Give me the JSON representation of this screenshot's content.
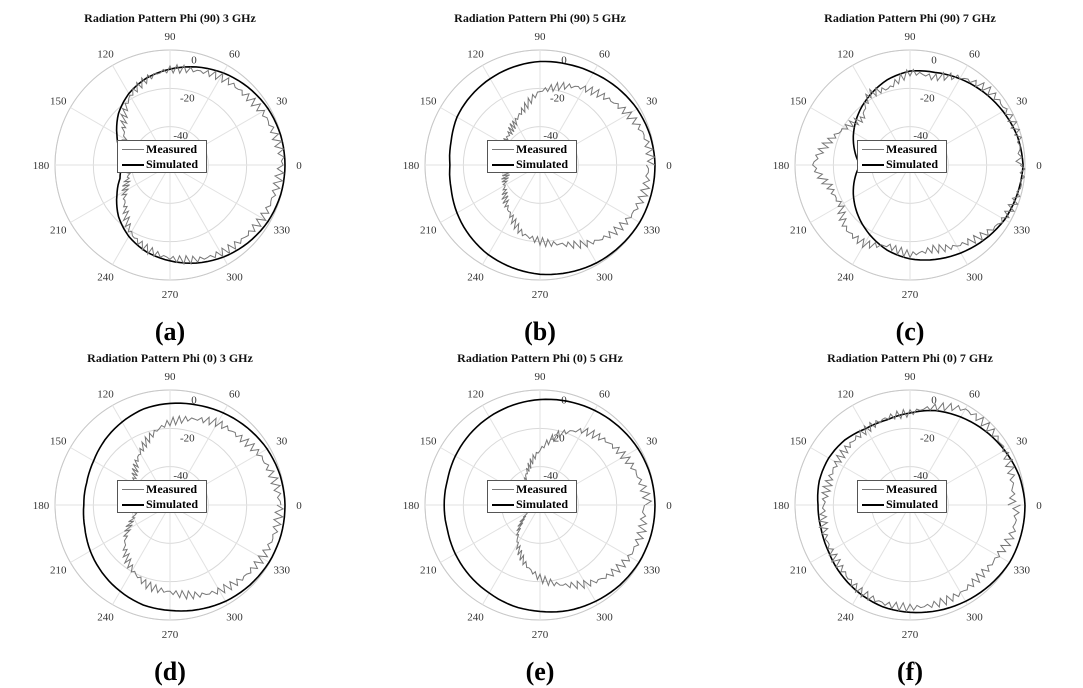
{
  "figure": {
    "panel_labels": [
      "(a)",
      "(b)",
      "(c)",
      "(d)",
      "(e)",
      "(f)"
    ]
  },
  "chart_data": [
    {
      "type": "polar-line",
      "title": "Radiation Pattern Phi (90) 3 GHz",
      "angle_ticks": [
        "0",
        "30",
        "60",
        "90",
        "120",
        "150",
        "180",
        "210",
        "240",
        "270",
        "300",
        "330"
      ],
      "radial_ticks": [
        "0",
        "-20",
        "-40"
      ],
      "rlim": [
        -60,
        0
      ],
      "legend": {
        "position": "center",
        "entries": [
          "Measured",
          "Simulated"
        ]
      },
      "series": [
        {
          "name": "Simulated",
          "color": "#000000",
          "theta": [
            0,
            15,
            30,
            45,
            60,
            75,
            90,
            105,
            120,
            135,
            150,
            165,
            180,
            195,
            210,
            225,
            240,
            255,
            270,
            285,
            300,
            315,
            330,
            345
          ],
          "r": [
            0,
            -0.2,
            -1,
            -2.5,
            -4.5,
            -7,
            -10,
            -13,
            -17,
            -22,
            -28,
            -33,
            -35,
            -33,
            -28,
            -22,
            -17,
            -13,
            -10,
            -7,
            -4.5,
            -2.5,
            -1,
            -0.2
          ]
        },
        {
          "name": "Measured",
          "color": "#777777",
          "theta": [
            0,
            15,
            30,
            45,
            60,
            75,
            90,
            105,
            120,
            135,
            150,
            165,
            180,
            195,
            210,
            225,
            240,
            255,
            270,
            285,
            300,
            315,
            330,
            345
          ],
          "r": [
            -1,
            -2,
            -3,
            -5,
            -6,
            -9,
            -11,
            -15,
            -20,
            -27,
            -33,
            -37,
            -38,
            -36,
            -32,
            -27,
            -20,
            -16,
            -13,
            -10,
            -7,
            -5,
            -3,
            -2
          ]
        }
      ]
    },
    {
      "type": "polar-line",
      "title": "Radiation Pattern Phi (90) 5 GHz",
      "angle_ticks": [
        "0",
        "30",
        "60",
        "90",
        "120",
        "150",
        "180",
        "210",
        "240",
        "270",
        "300",
        "330"
      ],
      "radial_ticks": [
        "0",
        "-20",
        "-40"
      ],
      "rlim": [
        -60,
        0
      ],
      "legend": {
        "position": "center",
        "entries": [
          "Measured",
          "Simulated"
        ]
      },
      "series": [
        {
          "name": "Simulated",
          "color": "#000000",
          "theta": [
            0,
            15,
            30,
            45,
            60,
            75,
            90,
            105,
            120,
            135,
            150,
            165,
            180,
            195,
            210,
            225,
            240,
            255,
            270,
            285,
            300,
            315,
            330,
            345
          ],
          "r": [
            0,
            -0.5,
            -1.5,
            -3,
            -4.5,
            -5.5,
            -6,
            -7,
            -8,
            -9,
            -10,
            -12,
            -13,
            -12,
            -10,
            -8,
            -6,
            -4.5,
            -3,
            -2,
            -1,
            -0.5,
            0,
            0
          ]
        },
        {
          "name": "Measured",
          "color": "#777777",
          "theta": [
            0,
            15,
            30,
            45,
            60,
            75,
            90,
            105,
            120,
            135,
            150,
            165,
            180,
            195,
            210,
            225,
            240,
            255,
            270,
            285,
            300,
            315,
            330,
            345
          ],
          "r": [
            -3,
            -5,
            -8,
            -11,
            -13,
            -16,
            -20,
            -28,
            -34,
            -38,
            -40,
            -42,
            -44,
            -42,
            -38,
            -33,
            -28,
            -22,
            -20,
            -18,
            -14,
            -10,
            -7,
            -4
          ]
        }
      ]
    },
    {
      "type": "polar-line",
      "title": "Radiation Pattern Phi (90) 7 GHz",
      "angle_ticks": [
        "0",
        "30",
        "60",
        "90",
        "120",
        "150",
        "180",
        "210",
        "240",
        "270",
        "300",
        "330"
      ],
      "radial_ticks": [
        "0",
        "-20",
        "-40"
      ],
      "rlim": [
        -60,
        0
      ],
      "legend": {
        "position": "center",
        "entries": [
          "Measured",
          "Simulated"
        ]
      },
      "series": [
        {
          "name": "Simulated",
          "color": "#000000",
          "theta": [
            0,
            15,
            30,
            45,
            60,
            75,
            90,
            105,
            120,
            135,
            150,
            165,
            180,
            195,
            210,
            225,
            240,
            255,
            270,
            285,
            300,
            315,
            330,
            345
          ],
          "r": [
            -1,
            -2,
            -4,
            -6,
            -8,
            -10,
            -11,
            -14,
            -18,
            -22,
            -26,
            -30,
            -34,
            -30,
            -26,
            -22,
            -18,
            -14,
            -11,
            -9,
            -7,
            -5,
            -3,
            -2
          ]
        },
        {
          "name": "Measured",
          "color": "#777777",
          "theta": [
            0,
            15,
            30,
            45,
            60,
            75,
            90,
            105,
            120,
            135,
            150,
            165,
            180,
            195,
            210,
            225,
            240,
            255,
            270,
            285,
            300,
            315,
            330,
            345
          ],
          "r": [
            -2,
            -1,
            -3,
            -5,
            -9,
            -14,
            -12,
            -18,
            -16,
            -24,
            -20,
            -15,
            -10,
            -18,
            -20,
            -14,
            -13,
            -16,
            -12,
            -13,
            -10,
            -7,
            -4,
            -3
          ]
        }
      ]
    },
    {
      "type": "polar-line",
      "title": "Radiation Pattern Phi (0) 3 GHz",
      "angle_ticks": [
        "0",
        "30",
        "60",
        "90",
        "120",
        "150",
        "180",
        "210",
        "240",
        "270",
        "300",
        "330"
      ],
      "radial_ticks": [
        "0",
        "-20",
        "-40"
      ],
      "rlim": [
        -60,
        0
      ],
      "legend": {
        "position": "center",
        "entries": [
          "Measured",
          "Simulated"
        ]
      },
      "series": [
        {
          "name": "Simulated",
          "color": "#000000",
          "theta": [
            0,
            15,
            30,
            45,
            60,
            75,
            90,
            105,
            120,
            135,
            150,
            165,
            180,
            195,
            210,
            225,
            240,
            255,
            270,
            285,
            300,
            315,
            330,
            345
          ],
          "r": [
            0,
            -0.5,
            -1.5,
            -3,
            -4.5,
            -6,
            -7,
            -8,
            -10,
            -12,
            -14,
            -15,
            -15,
            -14,
            -12,
            -10,
            -8,
            -6,
            -5,
            -3.5,
            -2,
            -1,
            -0.3,
            0
          ]
        },
        {
          "name": "Measured",
          "color": "#777777",
          "theta": [
            0,
            15,
            30,
            45,
            60,
            75,
            90,
            105,
            120,
            135,
            150,
            165,
            180,
            195,
            210,
            225,
            240,
            255,
            270,
            285,
            300,
            315,
            330,
            345
          ],
          "r": [
            -2,
            -3,
            -5,
            -8,
            -10,
            -14,
            -18,
            -24,
            -30,
            -35,
            -38,
            -40,
            -42,
            -40,
            -34,
            -27,
            -22,
            -18,
            -16,
            -12,
            -8,
            -5,
            -3,
            -2
          ]
        }
      ]
    },
    {
      "type": "polar-line",
      "title": "Radiation Pattern Phi (0) 5 GHz",
      "angle_ticks": [
        "0",
        "30",
        "60",
        "90",
        "120",
        "150",
        "180",
        "210",
        "240",
        "270",
        "300",
        "330"
      ],
      "radial_ticks": [
        "0",
        "-20",
        "-40"
      ],
      "rlim": [
        -60,
        0
      ],
      "legend": {
        "position": "center",
        "entries": [
          "Measured",
          "Simulated"
        ]
      },
      "series": [
        {
          "name": "Simulated",
          "color": "#000000",
          "theta": [
            0,
            15,
            30,
            45,
            60,
            75,
            90,
            105,
            120,
            135,
            150,
            165,
            180,
            195,
            210,
            225,
            240,
            255,
            270,
            285,
            300,
            315,
            330,
            345
          ],
          "r": [
            0,
            -0.3,
            -1,
            -2,
            -3,
            -4,
            -5,
            -6,
            -7,
            -8,
            -9,
            -10,
            -10,
            -10,
            -9,
            -8,
            -7,
            -5.5,
            -4.5,
            -3,
            -2,
            -1,
            -0.3,
            0
          ]
        },
        {
          "name": "Measured",
          "color": "#777777",
          "theta": [
            0,
            15,
            30,
            45,
            60,
            75,
            90,
            105,
            120,
            135,
            150,
            165,
            180,
            195,
            210,
            225,
            240,
            255,
            270,
            285,
            300,
            315,
            330,
            345
          ],
          "r": [
            -5,
            -8,
            -10,
            -12,
            -14,
            -20,
            -30,
            -38,
            -45,
            -52,
            -55,
            -58,
            -60,
            -58,
            -52,
            -44,
            -35,
            -28,
            -22,
            -18,
            -14,
            -10,
            -7,
            -5
          ]
        }
      ]
    },
    {
      "type": "polar-line",
      "title": "Radiation Pattern Phi (0) 7 GHz",
      "angle_ticks": [
        "0",
        "30",
        "60",
        "90",
        "120",
        "150",
        "180",
        "210",
        "240",
        "270",
        "300",
        "330"
      ],
      "radial_ticks": [
        "0",
        "-20",
        "-40"
      ],
      "rlim": [
        -60,
        0
      ],
      "legend": {
        "position": "center",
        "entries": [
          "Measured",
          "Simulated"
        ]
      },
      "series": [
        {
          "name": "Simulated",
          "color": "#000000",
          "theta": [
            0,
            15,
            30,
            45,
            60,
            75,
            90,
            105,
            120,
            135,
            150,
            165,
            180,
            195,
            210,
            225,
            240,
            255,
            270,
            285,
            300,
            315,
            330,
            345
          ],
          "r": [
            0,
            -1,
            -3,
            -5,
            -7,
            -9,
            -12,
            -14,
            -14,
            -12,
            -11,
            -11,
            -12,
            -12,
            -11,
            -9,
            -7,
            -5,
            -4,
            -3,
            -2,
            -1,
            0,
            0
          ]
        },
        {
          "name": "Measured",
          "color": "#777777",
          "theta": [
            0,
            15,
            30,
            45,
            60,
            75,
            90,
            105,
            120,
            135,
            150,
            165,
            180,
            195,
            210,
            225,
            240,
            255,
            270,
            285,
            300,
            315,
            330,
            345
          ],
          "r": [
            -6,
            -5,
            -4,
            -4,
            -4,
            -8,
            -12,
            -12,
            -13,
            -14,
            -15,
            -16,
            -16,
            -15,
            -14,
            -12,
            -8,
            -6,
            -5,
            -5,
            -6,
            -8,
            -8,
            -6
          ]
        }
      ]
    }
  ]
}
